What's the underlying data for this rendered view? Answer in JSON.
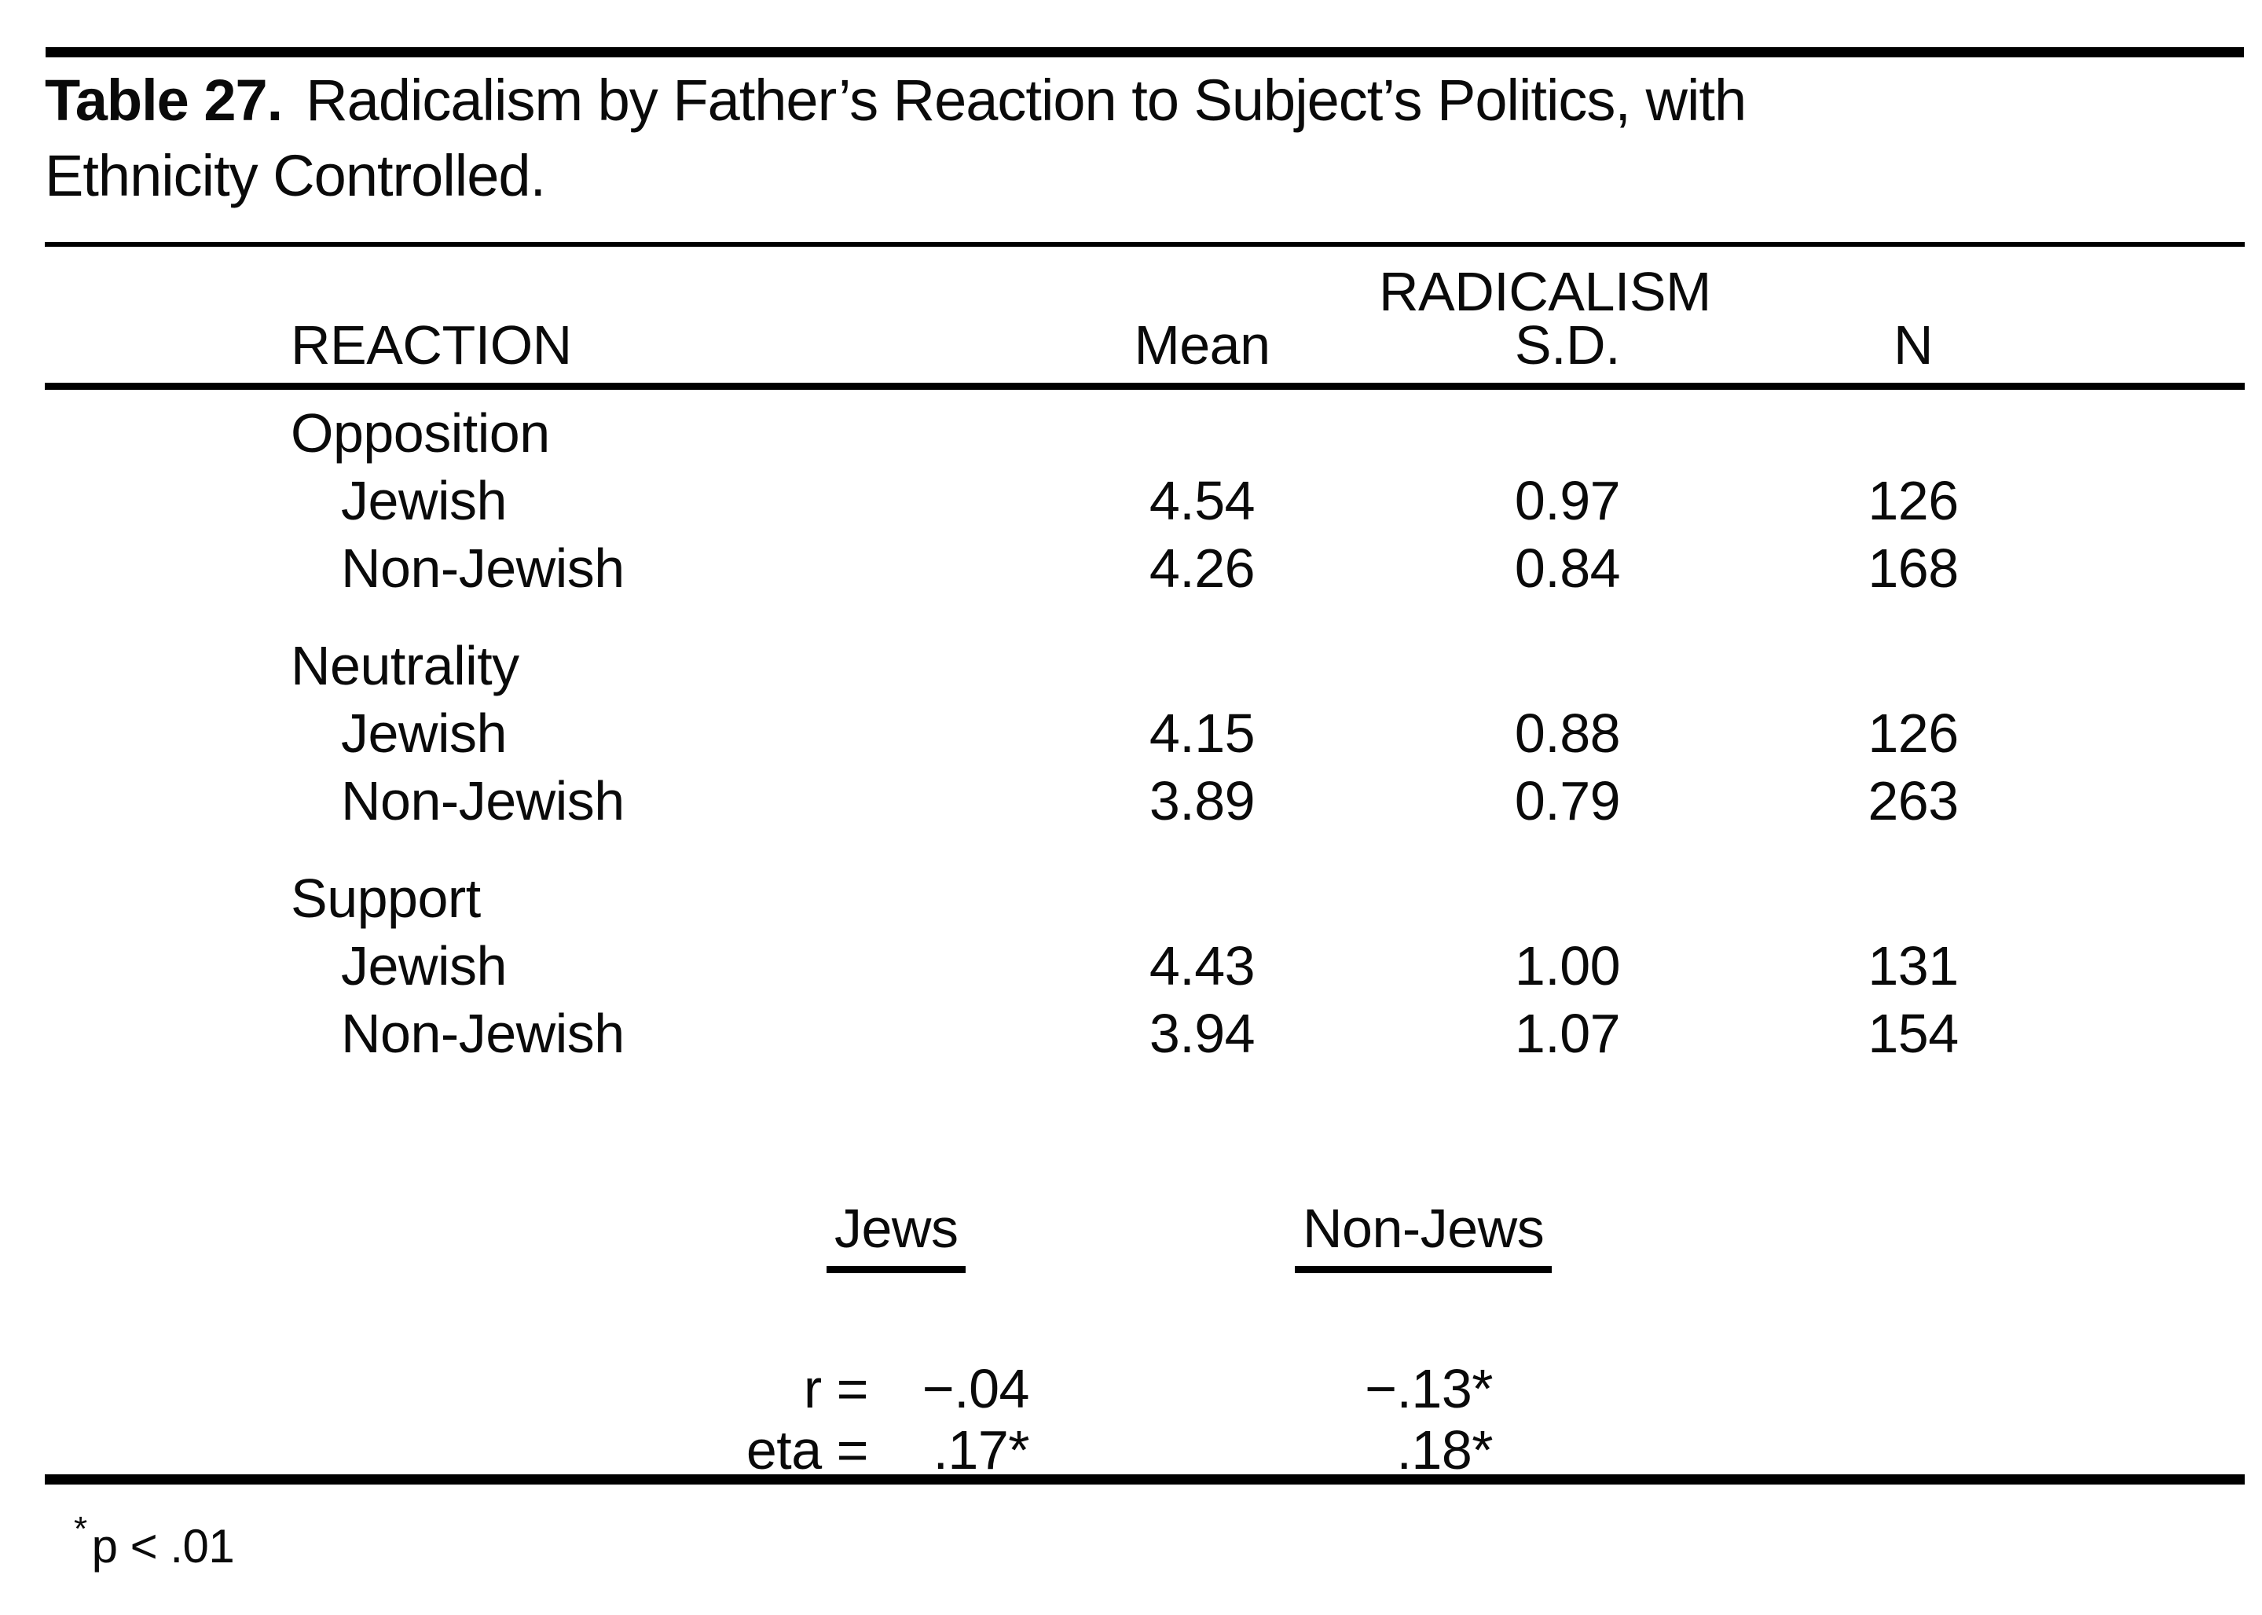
{
  "title": {
    "label": "Table 27.",
    "line1": "Radicalism by Father’s Reaction to Subject’s Politics, with",
    "line2": "Ethnicity Controlled."
  },
  "table": {
    "spanner": "RADICALISM",
    "columns": [
      "REACTION",
      "Mean",
      "S.D.",
      "N"
    ],
    "groups": [
      {
        "label": "Opposition",
        "rows": [
          {
            "label": "Jewish",
            "mean": "4.54",
            "sd": "0.97",
            "n": "126"
          },
          {
            "label": "Non-Jewish",
            "mean": "4.26",
            "sd": "0.84",
            "n": "168"
          }
        ]
      },
      {
        "label": "Neutrality",
        "rows": [
          {
            "label": "Jewish",
            "mean": "4.15",
            "sd": "0.88",
            "n": "126"
          },
          {
            "label": "Non-Jewish",
            "mean": "3.89",
            "sd": "0.79",
            "n": "263"
          }
        ]
      },
      {
        "label": "Support",
        "rows": [
          {
            "label": "Jewish",
            "mean": "4.43",
            "sd": "1.00",
            "n": "131"
          },
          {
            "label": "Non-Jewish",
            "mean": "3.94",
            "sd": "1.07",
            "n": "154"
          }
        ]
      }
    ]
  },
  "stats": {
    "col_headers": [
      "Jews",
      "Non-Jews"
    ],
    "rows": [
      {
        "label": "r =",
        "jews": "−.04",
        "non_jews": "−.13*"
      },
      {
        "label": "eta =",
        "jews": ".17*",
        "non_jews": ".18*"
      }
    ]
  },
  "footnote": {
    "marker": "*",
    "text": "p < .01"
  }
}
